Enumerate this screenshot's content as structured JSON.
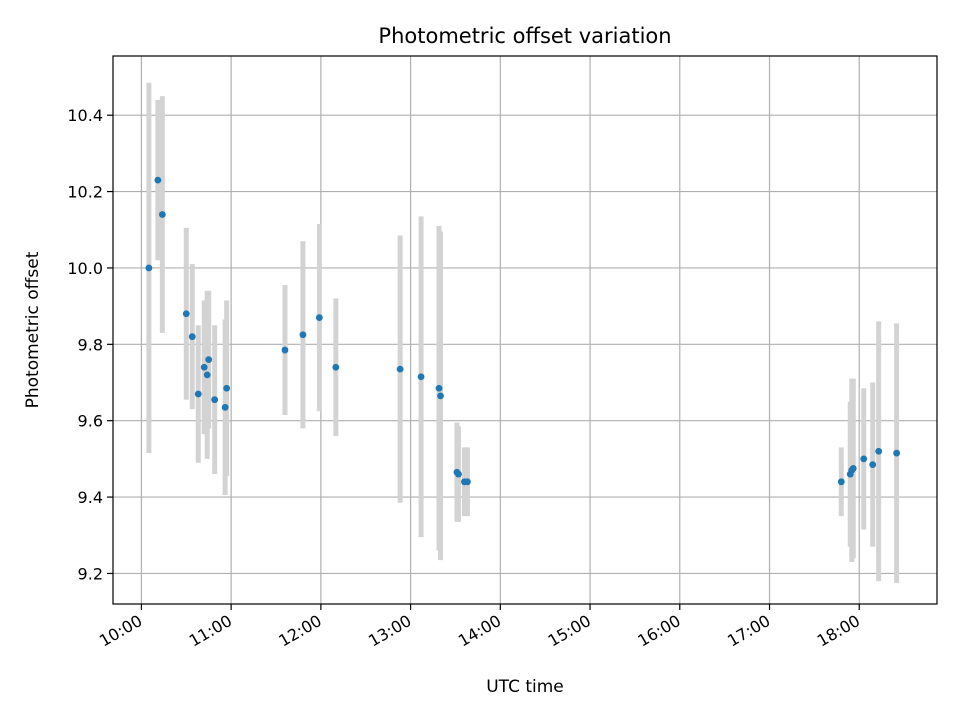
{
  "chart_data": {
    "type": "scatter",
    "title": "Photometric offset variation",
    "xlabel": "UTC time",
    "ylabel": "Photometric offset",
    "x_ticks": [
      "10:00",
      "11:00",
      "12:00",
      "13:00",
      "14:00",
      "15:00",
      "16:00",
      "17:00",
      "18:00"
    ],
    "y_ticks": [
      "9.2",
      "9.4",
      "9.6",
      "9.8",
      "10.0",
      "10.2",
      "10.4"
    ],
    "xlim": [
      "09:41",
      "18:52"
    ],
    "ylim": [
      9.12,
      10.555
    ],
    "grid": true,
    "colors": {
      "point": "#1f77b4",
      "errorbar": "#d3d3d3",
      "grid": "#b0b0b0"
    },
    "points": [
      {
        "x": "10:05",
        "y": 10.0,
        "yerr": 0.485
      },
      {
        "x": "10:11",
        "y": 10.23,
        "yerr": 0.21
      },
      {
        "x": "10:14",
        "y": 10.14,
        "yerr": 0.31
      },
      {
        "x": "10:30",
        "y": 9.88,
        "yerr": 0.225
      },
      {
        "x": "10:34",
        "y": 9.82,
        "yerr": 0.19
      },
      {
        "x": "10:38",
        "y": 9.67,
        "yerr": 0.18
      },
      {
        "x": "10:42",
        "y": 9.74,
        "yerr": 0.175
      },
      {
        "x": "10:44",
        "y": 9.72,
        "yerr": 0.22
      },
      {
        "x": "10:45",
        "y": 9.76,
        "yerr": 0.18
      },
      {
        "x": "10:49",
        "y": 9.655,
        "yerr": 0.195
      },
      {
        "x": "10:56",
        "y": 9.635,
        "yerr": 0.23
      },
      {
        "x": "10:57",
        "y": 9.685,
        "yerr": 0.23
      },
      {
        "x": "11:36",
        "y": 9.785,
        "yerr": 0.17
      },
      {
        "x": "11:48",
        "y": 9.825,
        "yerr": 0.245
      },
      {
        "x": "11:59",
        "y": 9.87,
        "yerr": 0.245
      },
      {
        "x": "12:10",
        "y": 9.74,
        "yerr": 0.18
      },
      {
        "x": "12:53",
        "y": 9.735,
        "yerr": 0.35
      },
      {
        "x": "13:07",
        "y": 9.715,
        "yerr": 0.42
      },
      {
        "x": "13:19",
        "y": 9.685,
        "yerr": 0.425
      },
      {
        "x": "13:20",
        "y": 9.665,
        "yerr": 0.43
      },
      {
        "x": "13:31",
        "y": 9.465,
        "yerr": 0.13
      },
      {
        "x": "13:32",
        "y": 9.46,
        "yerr": 0.125
      },
      {
        "x": "13:36",
        "y": 9.44,
        "yerr": 0.09
      },
      {
        "x": "13:38",
        "y": 9.44,
        "yerr": 0.09
      },
      {
        "x": "17:48",
        "y": 9.44,
        "yerr": 0.09
      },
      {
        "x": "17:54",
        "y": 9.46,
        "yerr": 0.19
      },
      {
        "x": "17:55",
        "y": 9.47,
        "yerr": 0.24
      },
      {
        "x": "17:56",
        "y": 9.475,
        "yerr": 0.235
      },
      {
        "x": "18:03",
        "y": 9.5,
        "yerr": 0.185
      },
      {
        "x": "18:09",
        "y": 9.485,
        "yerr": 0.215
      },
      {
        "x": "18:13",
        "y": 9.52,
        "yerr": 0.34
      },
      {
        "x": "18:25",
        "y": 9.515,
        "yerr": 0.34
      }
    ]
  }
}
